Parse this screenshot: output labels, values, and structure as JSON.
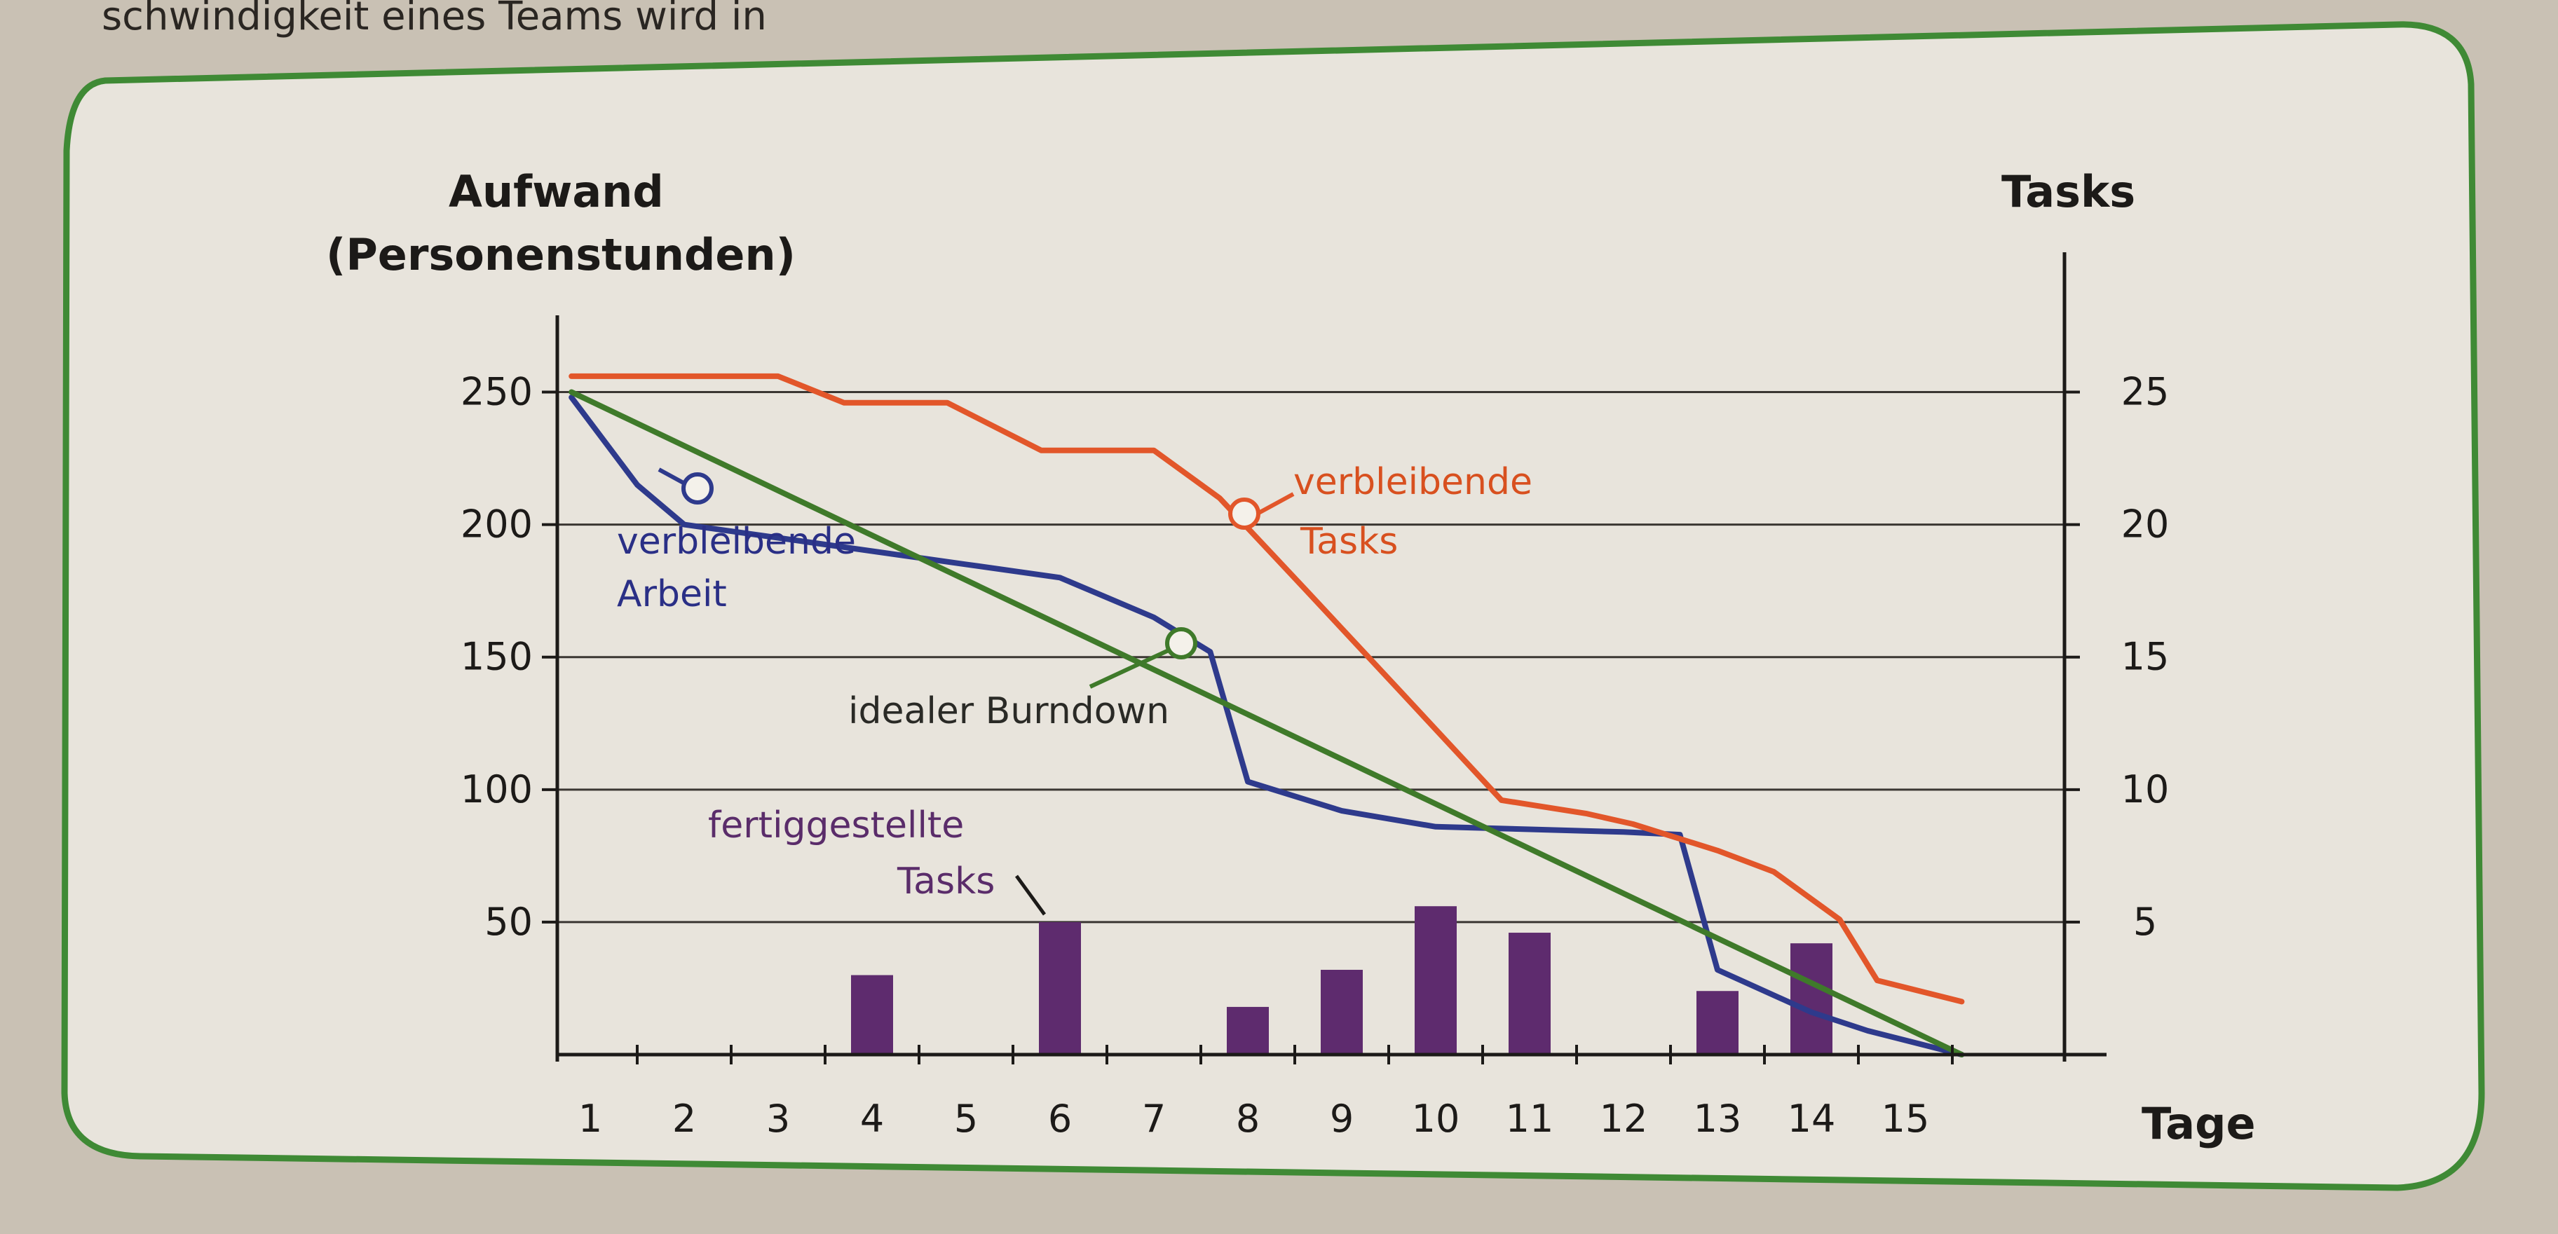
{
  "top_text": "schwindigkeit eines Teams wird in",
  "chart_data": {
    "type": "line",
    "x": [
      1,
      2,
      3,
      4,
      5,
      6,
      7,
      8,
      9,
      10,
      11,
      12,
      13,
      14,
      15
    ],
    "xlabel": "Tage",
    "ylabel_left": [
      "Aufwand",
      "(Personenstunden)"
    ],
    "ylabel_right": "Tasks",
    "y_left_ticks": [
      250,
      200,
      150,
      100,
      50
    ],
    "y_right_ticks": [
      25,
      20,
      15,
      10,
      5
    ],
    "ylim_left": [
      0,
      275
    ],
    "ylim_right": [
      0,
      27.5
    ],
    "grid": true,
    "series": [
      {
        "name": "verbleibende Arbeit",
        "axis": "left",
        "color": "#2e3a8c",
        "points": [
          [
            0.8,
            248
          ],
          [
            1.5,
            215
          ],
          [
            2.0,
            200
          ],
          [
            3.0,
            195
          ],
          [
            4.0,
            190
          ],
          [
            5.0,
            185
          ],
          [
            6.0,
            180
          ],
          [
            7.0,
            165
          ],
          [
            7.6,
            152
          ],
          [
            8.0,
            103
          ],
          [
            9.0,
            92
          ],
          [
            10.0,
            86
          ],
          [
            11.0,
            85
          ],
          [
            12.0,
            84
          ],
          [
            12.6,
            83
          ],
          [
            13.0,
            32
          ],
          [
            14.0,
            16
          ],
          [
            14.6,
            9
          ],
          [
            15.6,
            0
          ]
        ],
        "label_lines": [
          "verbleibende",
          "Arbeit"
        ]
      },
      {
        "name": "verbleibende Tasks",
        "axis": "right",
        "color": "#e2562a",
        "points": [
          [
            0.8,
            25.6
          ],
          [
            2.0,
            25.6
          ],
          [
            3.0,
            25.6
          ],
          [
            3.7,
            24.6
          ],
          [
            4.8,
            24.6
          ],
          [
            5.8,
            22.8
          ],
          [
            7.0,
            22.8
          ],
          [
            7.7,
            21.0
          ],
          [
            8.6,
            17.6
          ],
          [
            9.6,
            13.8
          ],
          [
            10.7,
            9.6
          ],
          [
            11.6,
            9.1
          ],
          [
            12.1,
            8.7
          ],
          [
            13.0,
            7.7
          ],
          [
            13.6,
            6.9
          ],
          [
            14.3,
            5.1
          ],
          [
            14.7,
            2.8
          ],
          [
            15.6,
            2.0
          ]
        ],
        "label_lines": [
          "verbleibende",
          "Tasks"
        ]
      },
      {
        "name": "idealer Burndown",
        "axis": "left",
        "color": "#3f7a2a",
        "points": [
          [
            0.8,
            250
          ],
          [
            15.6,
            0
          ]
        ],
        "label_lines": [
          "idealer Burndown"
        ]
      }
    ],
    "bars": {
      "name": "fertiggestellte Tasks",
      "axis": "right",
      "color": "#5e2b6e",
      "x": [
        4,
        6,
        8,
        9,
        10,
        11,
        13,
        14
      ],
      "values": [
        3,
        5,
        1.8,
        3.2,
        5.6,
        4.6,
        2.4,
        4.2
      ],
      "label_lines": [
        "fertiggestellte",
        "Tasks"
      ]
    }
  }
}
